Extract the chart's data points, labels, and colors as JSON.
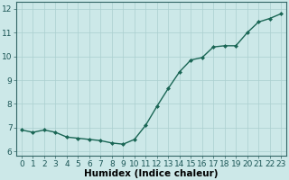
{
  "x": [
    0,
    1,
    2,
    3,
    4,
    5,
    6,
    7,
    8,
    9,
    10,
    11,
    12,
    13,
    14,
    15,
    16,
    17,
    18,
    19,
    20,
    21,
    22,
    23
  ],
  "y": [
    6.9,
    6.8,
    6.9,
    6.8,
    6.6,
    6.55,
    6.5,
    6.45,
    6.35,
    6.3,
    6.5,
    7.1,
    7.9,
    8.65,
    9.35,
    9.85,
    9.95,
    10.4,
    10.45,
    10.45,
    11.0,
    11.45,
    11.6,
    11.8
  ],
  "line_color": "#1a6655",
  "marker": "D",
  "marker_size": 2.0,
  "bg_color": "#cce8e8",
  "grid_color": "#aacfcf",
  "xlabel": "Humidex (Indice chaleur)",
  "xlim": [
    -0.5,
    23.5
  ],
  "ylim": [
    5.8,
    12.3
  ],
  "yticks": [
    6,
    7,
    8,
    9,
    10,
    11,
    12
  ],
  "xticks": [
    0,
    1,
    2,
    3,
    4,
    5,
    6,
    7,
    8,
    9,
    10,
    11,
    12,
    13,
    14,
    15,
    16,
    17,
    18,
    19,
    20,
    21,
    22,
    23
  ],
  "xlabel_fontsize": 7.5,
  "tick_fontsize": 6.5,
  "line_width": 1.0
}
